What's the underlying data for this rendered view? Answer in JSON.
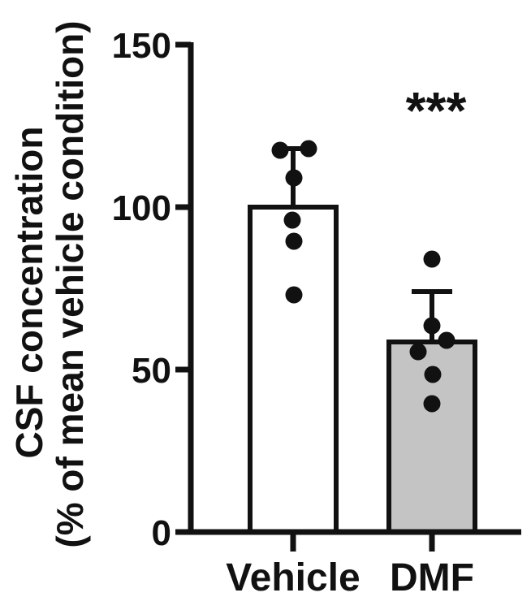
{
  "chart_data": {
    "type": "bar",
    "categories": [
      "Vehicle",
      "DMF"
    ],
    "values": [
      100,
      58.5
    ],
    "errors": [
      18,
      15.5
    ],
    "points": [
      [
        117.5,
        118,
        109,
        96,
        89.5,
        73
      ],
      [
        84,
        63.5,
        59,
        55.5,
        48.5,
        39.5
      ]
    ],
    "bar_colors": [
      "#ffffff",
      "#c4c4c4"
    ],
    "point_color": "#111111",
    "ylabel": [
      "CSF concentration",
      "(% of mean vehicle condition)"
    ],
    "ylim": [
      0,
      150
    ],
    "yticks": [
      0,
      50,
      100,
      150
    ],
    "annotations": [
      {
        "category": "DMF",
        "text": "***"
      }
    ],
    "grid": false
  }
}
